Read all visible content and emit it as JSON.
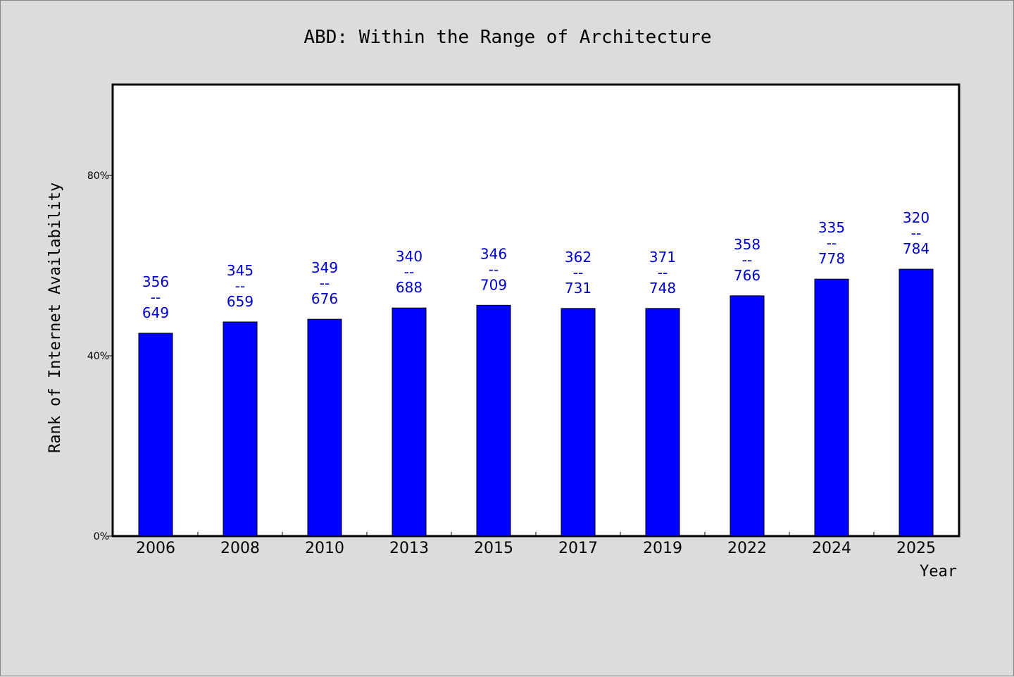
{
  "chart_data": {
    "type": "bar",
    "title": "ABD: Within the Range of Architecture",
    "xlabel": "Year",
    "ylabel": "Rank of Internet Availability",
    "categories": [
      "2006",
      "2008",
      "2010",
      "2013",
      "2015",
      "2017",
      "2019",
      "2022",
      "2024",
      "2025"
    ],
    "values": [
      45.0,
      47.5,
      48.1,
      50.6,
      51.2,
      50.5,
      50.5,
      53.3,
      57.0,
      59.2
    ],
    "value_unit": "%",
    "annotations": [
      {
        "top": "356",
        "sep": "--",
        "bottom": "649"
      },
      {
        "top": "345",
        "sep": "--",
        "bottom": "659"
      },
      {
        "top": "349",
        "sep": "--",
        "bottom": "676"
      },
      {
        "top": "340",
        "sep": "--",
        "bottom": "688"
      },
      {
        "top": "346",
        "sep": "--",
        "bottom": "709"
      },
      {
        "top": "362",
        "sep": "--",
        "bottom": "731"
      },
      {
        "top": "371",
        "sep": "--",
        "bottom": "748"
      },
      {
        "top": "358",
        "sep": "--",
        "bottom": "766"
      },
      {
        "top": "335",
        "sep": "--",
        "bottom": "778"
      },
      {
        "top": "320",
        "sep": "--",
        "bottom": "784"
      }
    ],
    "yticks": [
      0,
      40,
      80
    ],
    "ytick_labels": [
      "0%",
      "40%",
      "80%"
    ],
    "ylim": [
      0,
      100
    ],
    "grid": false,
    "legend": "none",
    "colors": {
      "bar": "#0000ff",
      "label": "#0000cc",
      "background": "#dcdcdc",
      "plot_background": "#ffffff"
    }
  }
}
